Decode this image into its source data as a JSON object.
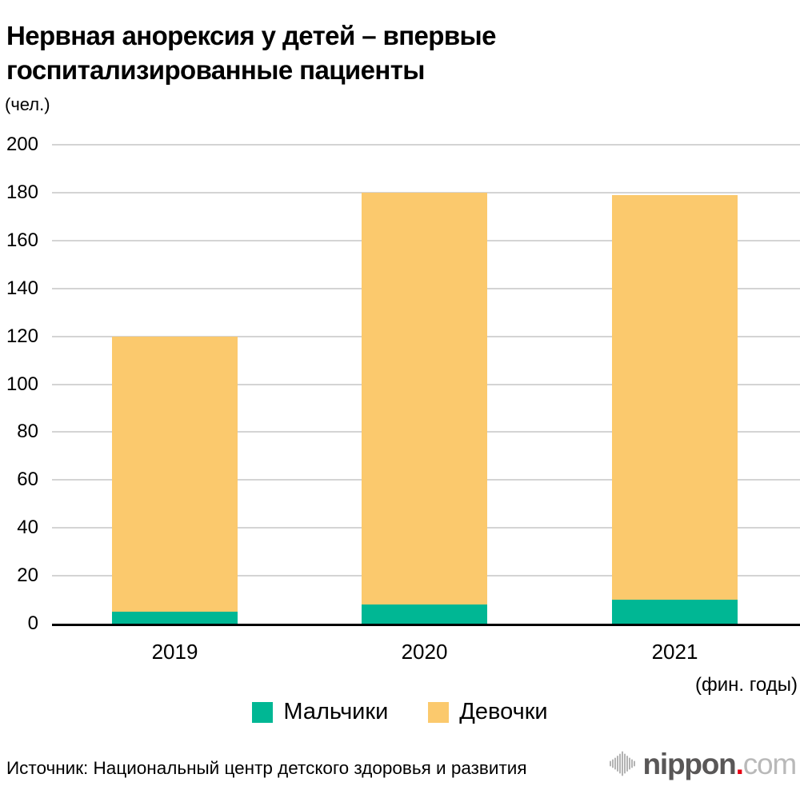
{
  "title": {
    "lines": [
      "Нервная анорексия у детей – впервые",
      "госпитализированные пациенты"
    ]
  },
  "chart_data": {
    "type": "bar",
    "stacked": true,
    "title": "Нервная анорексия у детей – впервые госпитализированные пациенты",
    "unit_label": "(чел.)",
    "x_axis_note": "(фин. годы)",
    "categories": [
      "2019",
      "2020",
      "2021"
    ],
    "series": [
      {
        "name": "Мальчики",
        "color": "#00b794",
        "values": [
          5,
          8,
          10
        ]
      },
      {
        "name": "Девочки",
        "color": "#fbc96d",
        "values": [
          115,
          172,
          169
        ]
      }
    ],
    "totals": [
      120,
      180,
      179
    ],
    "ylim": [
      0,
      200
    ],
    "yticks": [
      0,
      20,
      40,
      60,
      80,
      100,
      120,
      140,
      160,
      180,
      200
    ],
    "grid": true,
    "legend_position": "bottom",
    "colors": {
      "grid": "#d4d4d4",
      "axis": "#000000"
    }
  },
  "footer": {
    "source": "Источник: Национальный центр детского здоровья и развития",
    "logo": {
      "icon": "soundwave-bars-icon",
      "name": "nippon",
      "dot": ".",
      "tld": "com"
    }
  }
}
